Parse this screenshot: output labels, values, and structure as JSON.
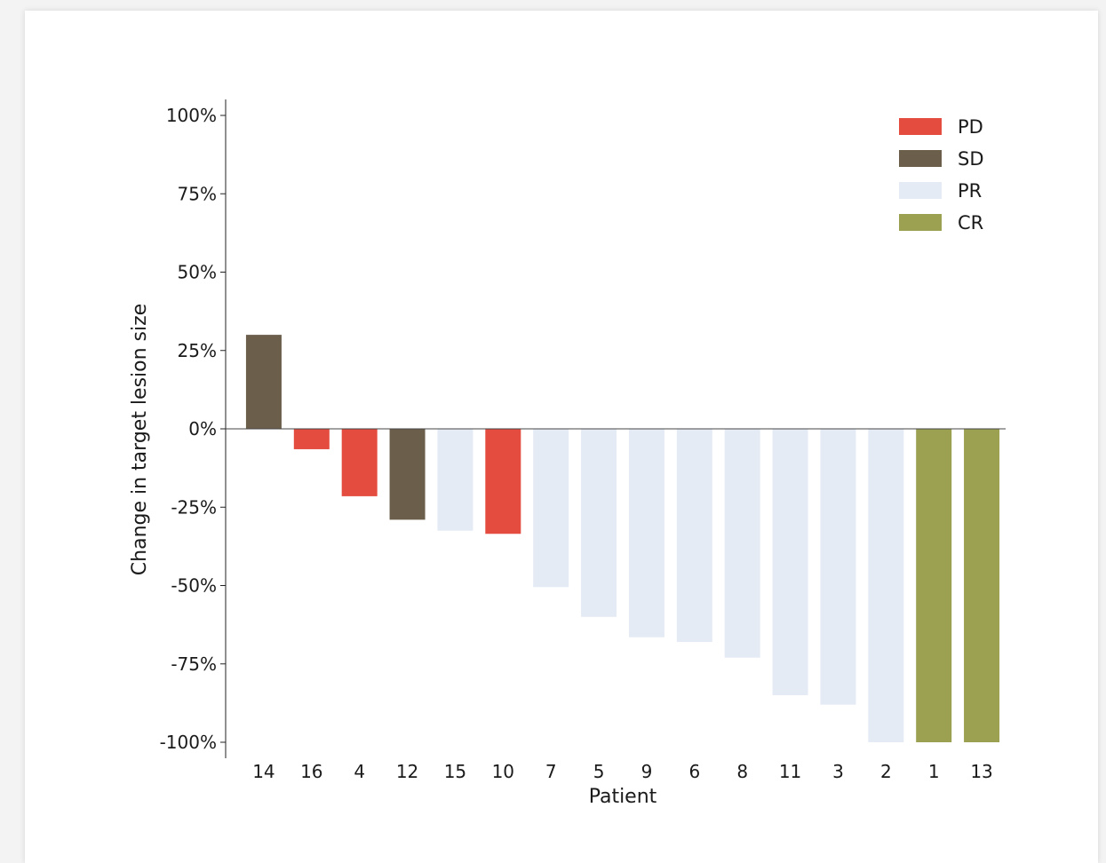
{
  "chart_data": {
    "type": "bar",
    "title": "",
    "xlabel": "Patient",
    "ylabel": "Change in target lesion size",
    "ylim": [
      -100,
      100
    ],
    "yticks": [
      100,
      75,
      50,
      25,
      0,
      -25,
      -50,
      -75,
      -100
    ],
    "ytick_labels": [
      "100%",
      "75%",
      "50%",
      "25%",
      "0%",
      "-25%",
      "-50%",
      "-75%",
      "-100%"
    ],
    "grid": false,
    "legend_position": "top-right",
    "categories": [
      "14",
      "16",
      "4",
      "12",
      "15",
      "10",
      "7",
      "5",
      "9",
      "6",
      "8",
      "11",
      "3",
      "2",
      "1",
      "13"
    ],
    "values": [
      30,
      -6.5,
      -21.5,
      -29,
      -32.5,
      -33.5,
      -50.5,
      -60,
      -66.5,
      -68,
      -73,
      -85,
      -88,
      -100,
      -100,
      -100
    ],
    "response": [
      "SD",
      "PD",
      "PD",
      "SD",
      "PR",
      "PD",
      "PR",
      "PR",
      "PR",
      "PR",
      "PR",
      "PR",
      "PR",
      "PR",
      "CR",
      "CR"
    ],
    "legend": [
      {
        "key": "PD",
        "label": "PD",
        "color": "#e34c3f"
      },
      {
        "key": "SD",
        "label": "SD",
        "color": "#6b5f4c"
      },
      {
        "key": "PR",
        "label": "PR",
        "color": "#e4ebf5"
      },
      {
        "key": "CR",
        "label": "CR",
        "color": "#9ca152"
      }
    ]
  }
}
